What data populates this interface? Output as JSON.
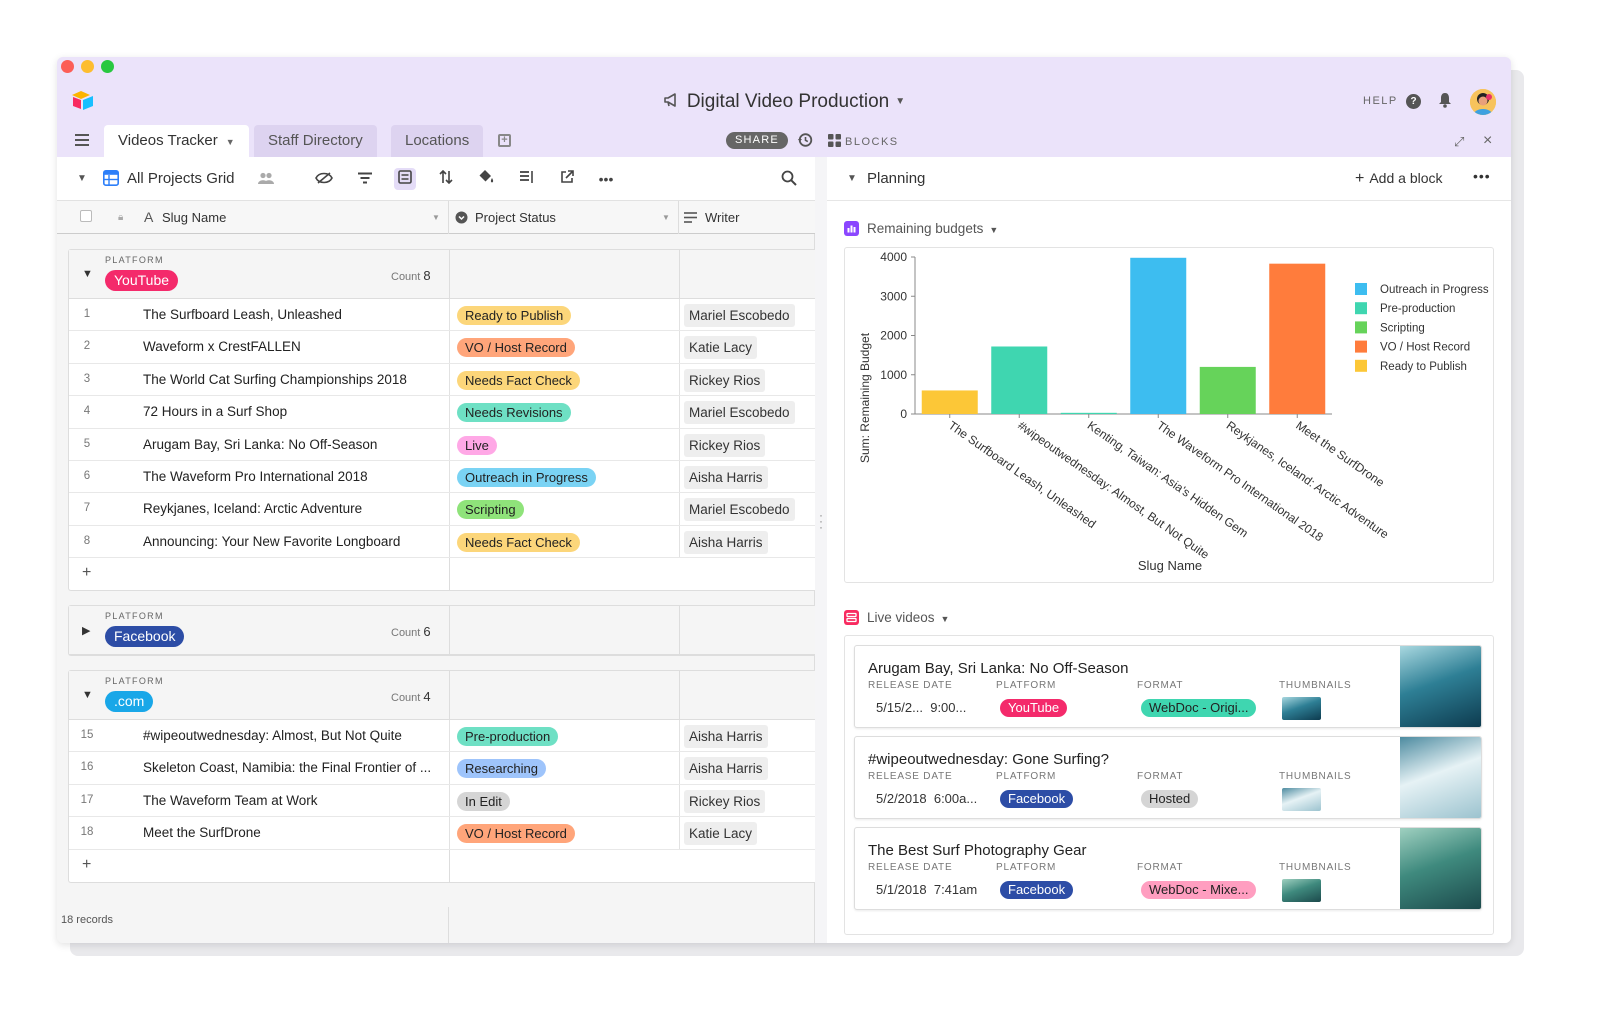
{
  "app": {
    "title": "Digital Video Production",
    "help_label": "HELP",
    "share_label": "SHARE",
    "blocks_label": "BLOCKS"
  },
  "tabs": [
    {
      "label": "Videos Tracker",
      "active": true
    },
    {
      "label": "Staff Directory",
      "active": false
    },
    {
      "label": "Locations",
      "active": false
    }
  ],
  "view": {
    "name": "All Projects Grid",
    "columns": {
      "slug": "Slug Name",
      "status": "Project Status",
      "writer": "Writer"
    },
    "records_label": "18 records"
  },
  "groups": [
    {
      "label": "PLATFORM",
      "name": "YouTube",
      "color": "#f42a6b",
      "count_label": "Count",
      "count": "8",
      "expanded": true,
      "rows": [
        {
          "num": "1",
          "slug": "The Surfboard Leash, Unleashed",
          "status": "Ready to Publish",
          "status_color": "#fcd67a",
          "writer": "Mariel Escobedo"
        },
        {
          "num": "2",
          "slug": "Waveform x CrestFALLEN",
          "status": "VO / Host Record",
          "status_color": "#ffa57a",
          "writer": "Katie Lacy"
        },
        {
          "num": "3",
          "slug": "The World Cat Surfing Championships 2018",
          "status": "Needs Fact Check",
          "status_color": "#fcd67a",
          "writer": "Rickey Rios"
        },
        {
          "num": "4",
          "slug": "72 Hours in a Surf Shop",
          "status": "Needs Revisions",
          "status_color": "#6ee0c4",
          "writer": "Mariel Escobedo"
        },
        {
          "num": "5",
          "slug": "Arugam Bay, Sri Lanka: No Off-Season",
          "status": "Live",
          "status_color": "#ffa8e6",
          "writer": "Rickey Rios"
        },
        {
          "num": "6",
          "slug": "The Waveform Pro International 2018",
          "status": "Outreach in Progress",
          "status_color": "#7ad3f4",
          "writer": "Aisha Harris"
        },
        {
          "num": "7",
          "slug": "Reykjanes, Iceland: Arctic Adventure",
          "status": "Scripting",
          "status_color": "#8fe37a",
          "writer": "Mariel Escobedo"
        },
        {
          "num": "8",
          "slug": "Announcing: Your New Favorite Longboard",
          "status": "Needs Fact Check",
          "status_color": "#fcd67a",
          "writer": "Aisha Harris"
        }
      ]
    },
    {
      "label": "PLATFORM",
      "name": "Facebook",
      "color": "#2d4da6",
      "count_label": "Count",
      "count": "6",
      "expanded": false,
      "rows": []
    },
    {
      "label": "PLATFORM",
      "name": ".com",
      "color": "#19a7e8",
      "count_label": "Count",
      "count": "4",
      "expanded": true,
      "rows": [
        {
          "num": "15",
          "slug": "#wipeoutwednesday: Almost, But Not Quite",
          "status": "Pre-production",
          "status_color": "#6ee0c4",
          "writer": "Aisha Harris"
        },
        {
          "num": "16",
          "slug": "Skeleton Coast, Namibia: the Final Frontier of ...",
          "status": "Researching",
          "status_color": "#9ec4fb",
          "writer": "Aisha Harris"
        },
        {
          "num": "17",
          "slug": "The Waveform Team at Work",
          "status": "In Edit",
          "status_color": "#d5d5d5",
          "writer": "Rickey Rios"
        },
        {
          "num": "18",
          "slug": "Meet the SurfDrone",
          "status": "VO / Host Record",
          "status_color": "#ffa57a",
          "writer": "Katie Lacy"
        }
      ]
    }
  ],
  "blocks_panel": {
    "title": "Planning",
    "add_label": "Add a block",
    "chart_block_title": "Remaining budgets",
    "live_block_title": "Live videos"
  },
  "chart_data": {
    "type": "bar",
    "title": "",
    "xlabel": "Slug Name",
    "ylabel": "Sum: Remaining Budget",
    "ylim": [
      0,
      4000
    ],
    "yticks": [
      "0",
      "1000",
      "2000",
      "3000",
      "4000"
    ],
    "categories": [
      "The Surfboard Leash, Unleashed",
      "#wipeoutwednesday: Almost, But Not Quite",
      "Kenting, Taiwan: Asia's Hidden Gem",
      "The Waveform Pro International 2018",
      "Reykjanes, Iceland: Arctic Adventure",
      "Meet the SurfDrone"
    ],
    "values": [
      600,
      1720,
      30,
      3980,
      1200,
      3830
    ],
    "bar_colors": [
      "#fcc737",
      "#3fd6b0",
      "#3fd6b0",
      "#3dbdf0",
      "#66d35a",
      "#ff7c3c"
    ],
    "legend": [
      {
        "name": "Outreach in Progress",
        "color": "#3dbdf0"
      },
      {
        "name": "Pre-production",
        "color": "#3fd6b0"
      },
      {
        "name": "Scripting",
        "color": "#66d35a"
      },
      {
        "name": "VO / Host Record",
        "color": "#ff7c3c"
      },
      {
        "name": "Ready to Publish",
        "color": "#fcc737"
      }
    ],
    "legend_position": "right",
    "grid": false
  },
  "live_videos": {
    "labels": {
      "release_date": "RELEASE DATE",
      "platform": "PLATFORM",
      "format": "FORMAT",
      "thumbnails": "THUMBNAILS"
    },
    "cards": [
      {
        "title": "Arugam Bay, Sri Lanka: No Off-Season",
        "date": "5/15/2...",
        "time": "9:00...",
        "platform": "YouTube",
        "platform_color": "#f42a6b",
        "format": "WebDoc - Origi...",
        "format_color": "#3fd6b0",
        "format_text_color": "#222222"
      },
      {
        "title": "#wipeoutwednesday: Gone Surfing?",
        "date": "5/2/2018",
        "time": "6:00a...",
        "platform": "Facebook",
        "platform_color": "#2d4da6",
        "format": "Hosted",
        "format_color": "#d5d5d5",
        "format_text_color": "#222222"
      },
      {
        "title": "The Best Surf Photography Gear",
        "date": "5/1/2018",
        "time": "7:41am",
        "platform": "Facebook",
        "platform_color": "#2d4da6",
        "format": "WebDoc - Mixe...",
        "format_color": "#ff9ec0",
        "format_text_color": "#222222"
      }
    ]
  }
}
